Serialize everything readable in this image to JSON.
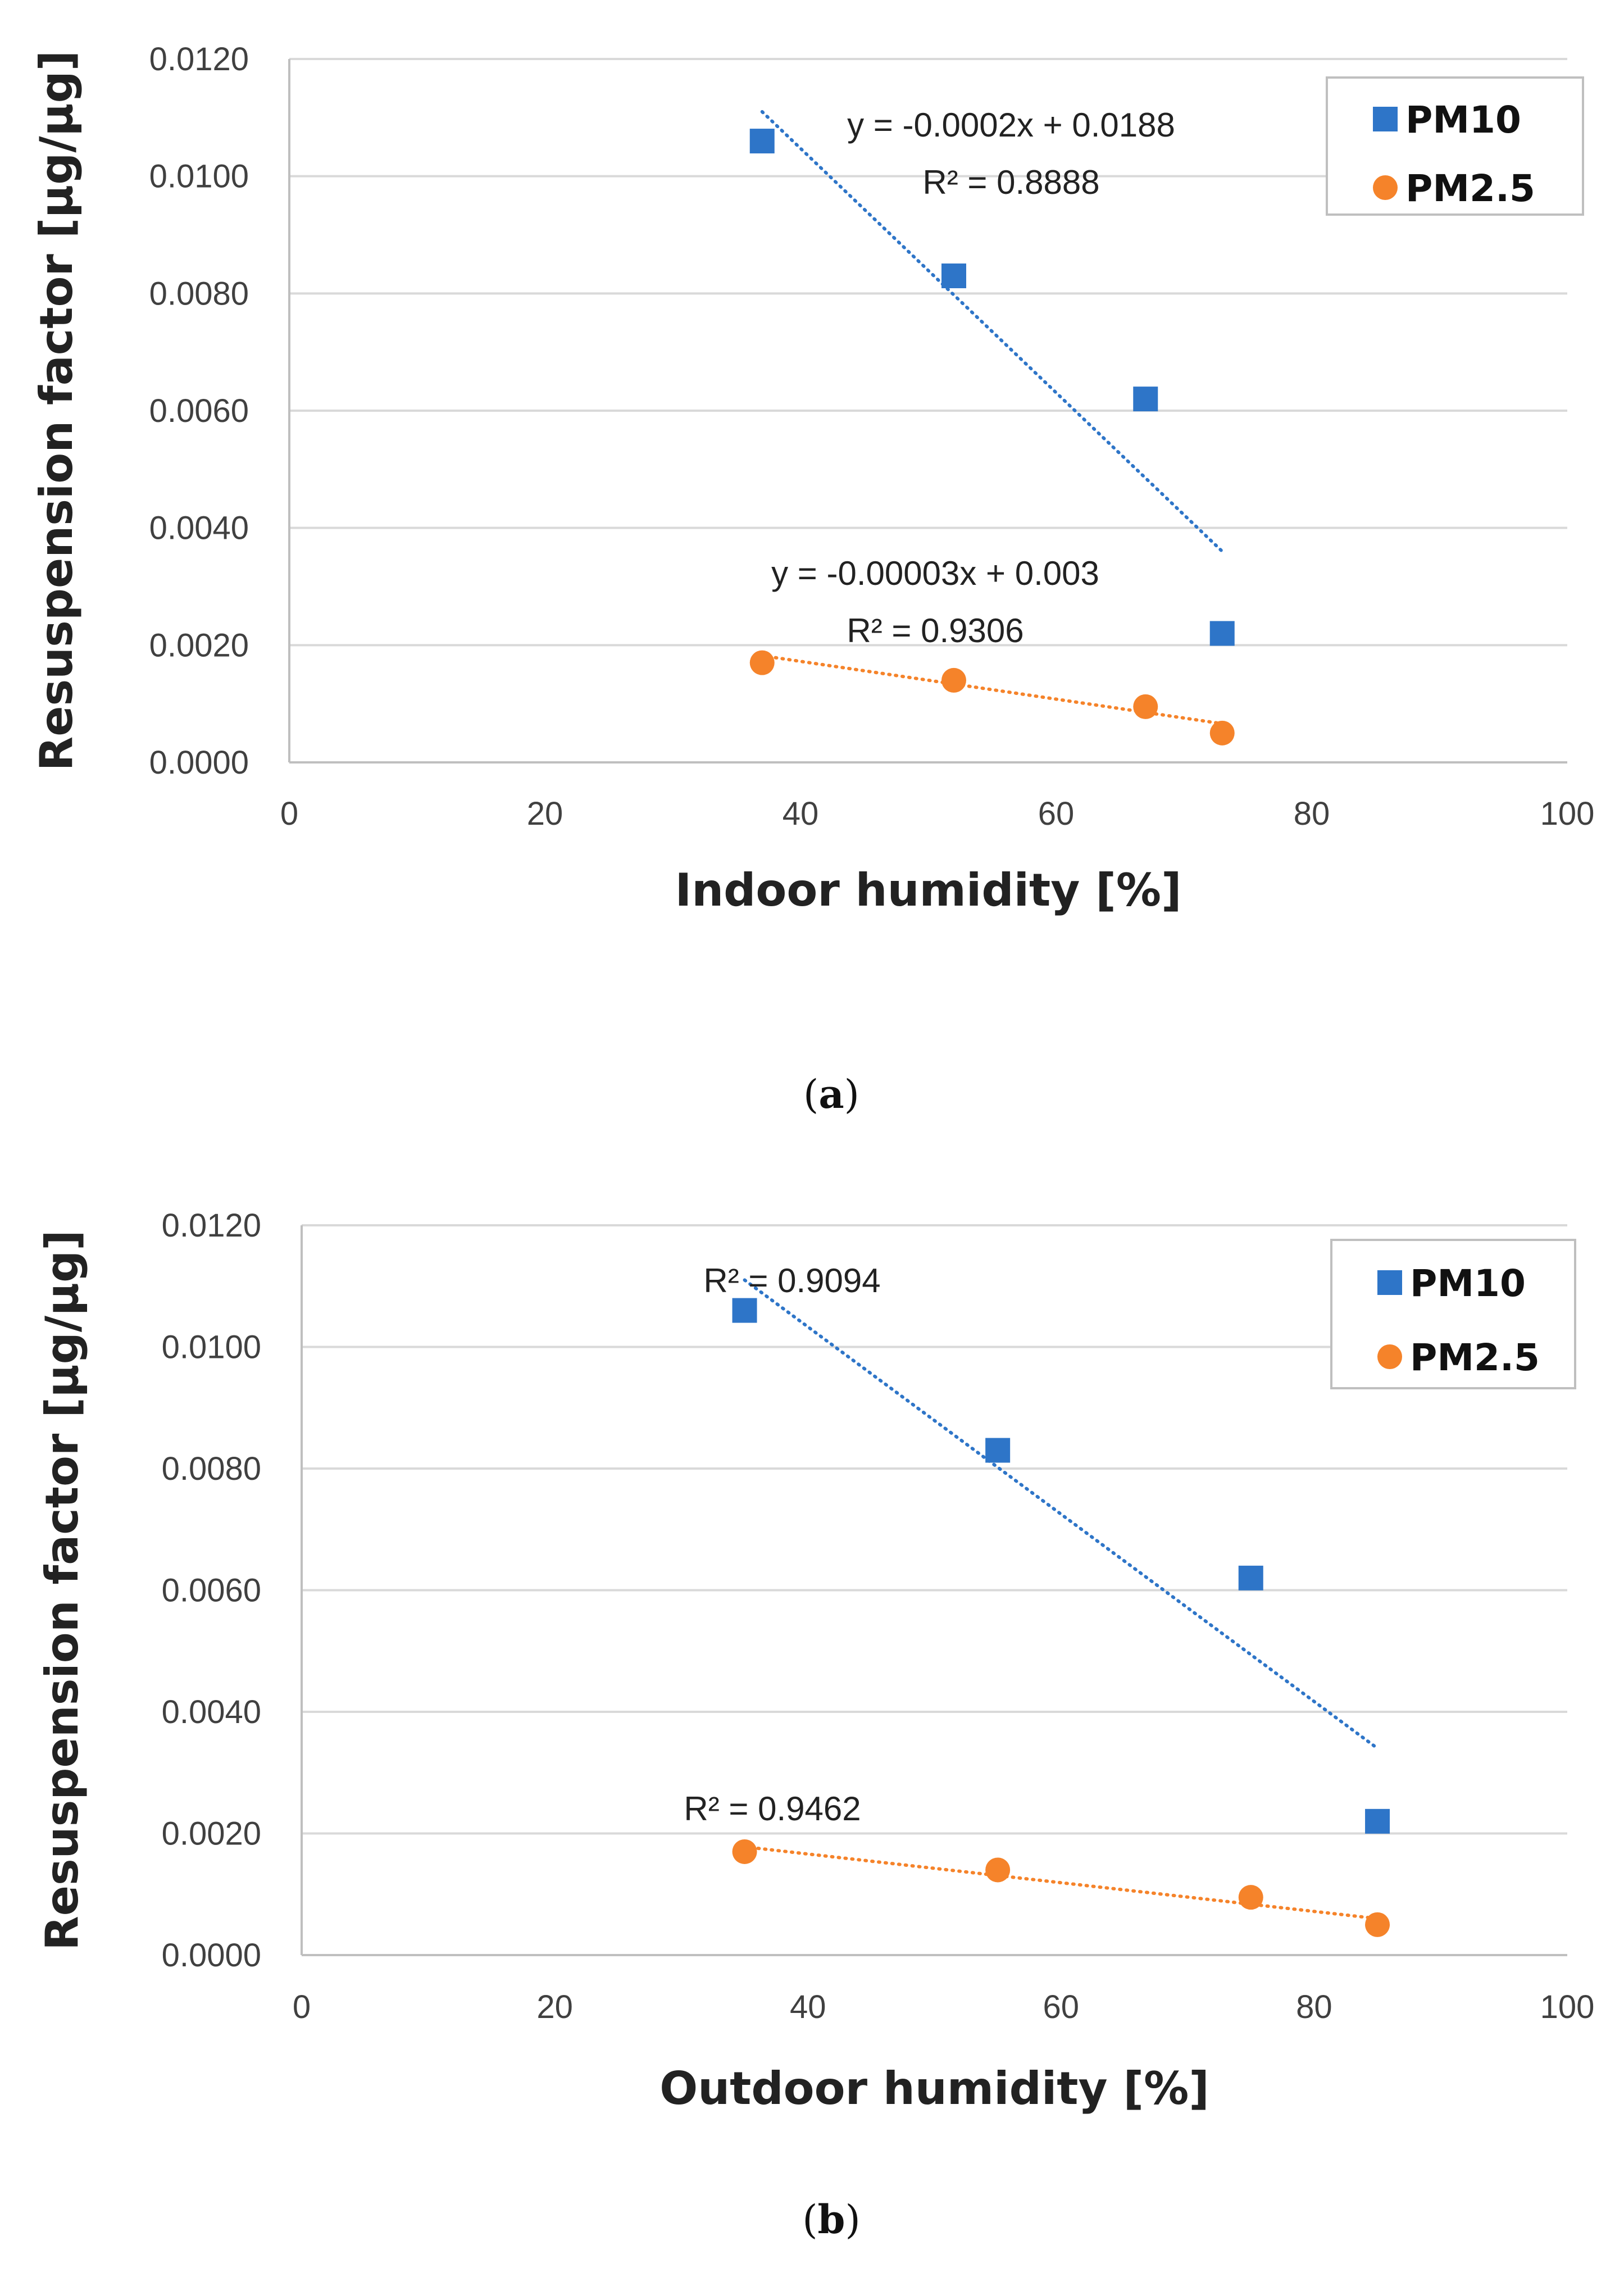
{
  "chart_data": [
    {
      "type": "scatter",
      "panel_label": "a",
      "caption_open": "(",
      "caption_close": ")",
      "xlabel": "Indoor humidity [%]",
      "ylabel": "Resuspension factor [µg/µg]",
      "xlim": [
        0,
        100
      ],
      "ylim": [
        0,
        0.012
      ],
      "x_ticks": [
        0,
        20,
        40,
        60,
        80,
        100
      ],
      "x_tick_labels": [
        "0",
        "20",
        "40",
        "60",
        "80",
        "100"
      ],
      "y_ticks": [
        0,
        0.002,
        0.004,
        0.006,
        0.008,
        0.01,
        0.012
      ],
      "y_tick_labels": [
        "0.0000",
        "0.0020",
        "0.0040",
        "0.0060",
        "0.0080",
        "0.0100",
        "0.0120"
      ],
      "grid": true,
      "legend_position": "top-right",
      "series": [
        {
          "name": "PM10",
          "marker": "square",
          "color": "#2E75C8",
          "x": [
            37,
            52,
            67,
            73
          ],
          "y": [
            0.0106,
            0.0083,
            0.0062,
            0.0022
          ],
          "trendline": {
            "type": "linear",
            "x_range": [
              37,
              73
            ],
            "y_range": [
              0.0111,
              0.0036
            ]
          },
          "annotations": [
            "y = -0.0002x + 0.0188",
            "R² = 0.8888"
          ]
        },
        {
          "name": "PM2.5",
          "marker": "circle",
          "color": "#F5832A",
          "x": [
            37,
            52,
            67,
            73
          ],
          "y": [
            0.0017,
            0.0014,
            0.00095,
            0.0005
          ],
          "trendline": {
            "type": "linear",
            "x_range": [
              37,
              73
            ],
            "y_range": [
              0.00182,
              0.00066
            ]
          },
          "annotations": [
            "y = -0.00003x + 0.003",
            "R² = 0.9306"
          ]
        }
      ]
    },
    {
      "type": "scatter",
      "panel_label": "b",
      "caption_open": "(",
      "caption_close": ")",
      "xlabel": "Outdoor humidity [%]",
      "ylabel": "Resuspension factor [µg/µg]",
      "xlim": [
        0,
        100
      ],
      "ylim": [
        0,
        0.012
      ],
      "x_ticks": [
        0,
        20,
        40,
        60,
        80,
        100
      ],
      "x_tick_labels": [
        "0",
        "20",
        "40",
        "60",
        "80",
        "100"
      ],
      "y_ticks": [
        0,
        0.002,
        0.004,
        0.006,
        0.008,
        0.01,
        0.012
      ],
      "y_tick_labels": [
        "0.0000",
        "0.0020",
        "0.0040",
        "0.0060",
        "0.0080",
        "0.0100",
        "0.0120"
      ],
      "grid": true,
      "legend_position": "top-right",
      "series": [
        {
          "name": "PM10",
          "marker": "square",
          "color": "#2E75C8",
          "x": [
            35,
            55,
            75,
            85
          ],
          "y": [
            0.0106,
            0.0083,
            0.0062,
            0.0022
          ],
          "trendline": {
            "type": "linear",
            "x_range": [
              35,
              85
            ],
            "y_range": [
              0.0111,
              0.0034
            ]
          },
          "annotations": [
            "R² = 0.9094"
          ]
        },
        {
          "name": "PM2.5",
          "marker": "circle",
          "color": "#F5832A",
          "x": [
            35,
            55,
            75,
            85
          ],
          "y": [
            0.0017,
            0.0014,
            0.00095,
            0.0005
          ],
          "trendline": {
            "type": "linear",
            "x_range": [
              35,
              85
            ],
            "y_range": [
              0.00178,
              0.0006
            ]
          },
          "annotations": [
            "R² = 0.9462"
          ]
        }
      ]
    }
  ]
}
